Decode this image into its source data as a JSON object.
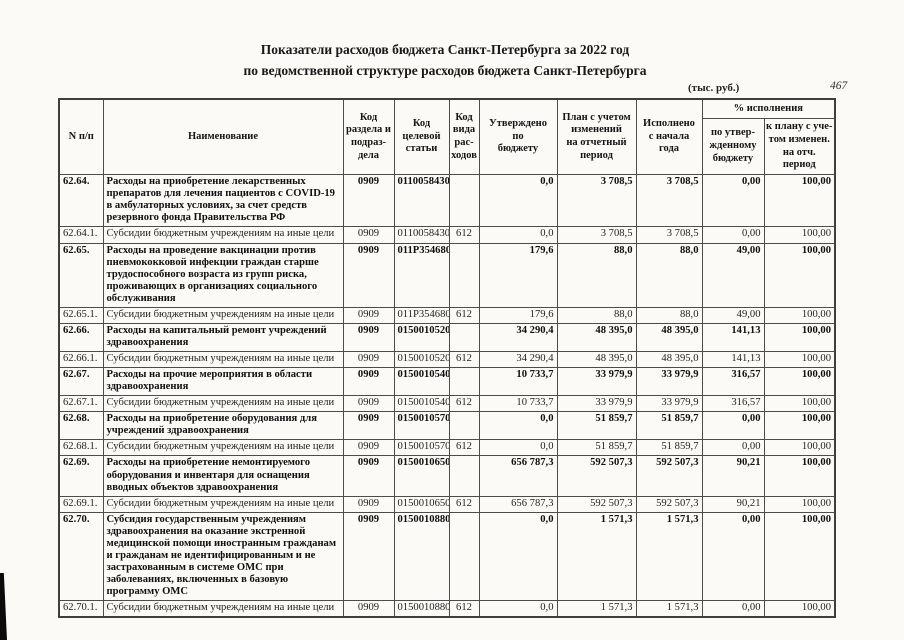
{
  "page": {
    "title_line1": "Показатели расходов бюджета Санкт-Петербурга за 2022 год",
    "title_line2": "по ведомственной структуре расходов бюджета Санкт-Петербурга",
    "units_note": "(тыс. руб.)",
    "page_number": "467"
  },
  "table": {
    "headers": {
      "num": "N п/п",
      "name": "Наименование",
      "section_code": "Код\nраздела и\nподраз-\nдела",
      "target_code": "Код\nцелевой\nстатьи",
      "kind_code": "Код\nвида\nрас-\nходов",
      "approved": "Утверждено\nпо\nбюджету",
      "plan": "План с учетом\nизменений\nна отчетный\nпериод",
      "executed": "Исполнено\nс начала\nгода",
      "pct_group": "% исполнения",
      "pct_budget": "по утвер-\nжденному\nбюджету",
      "pct_plan": "к плану с уче-\nтом изменен.\nна отч. период"
    },
    "rows": [
      {
        "num": "62.64.",
        "name": "Расходы на приобретение лекарственных препаратов для лечения пациентов с COVID-19 в амбулаторных условиях, за счет средств резервного фонда Правительства РФ",
        "section": "0909",
        "target": "0110058430",
        "kind": "",
        "approved": "0,0",
        "plan": "3 708,5",
        "executed": "3 708,5",
        "pct_budget": "0,00",
        "pct_plan": "100,00",
        "bold": true
      },
      {
        "num": "62.64.1.",
        "name": "Субсидии бюджетным учреждениям на иные цели",
        "section": "0909",
        "target": "0110058430",
        "kind": "612",
        "approved": "0,0",
        "plan": "3 708,5",
        "executed": "3 708,5",
        "pct_budget": "0,00",
        "pct_plan": "100,00",
        "bold": false
      },
      {
        "num": "62.65.",
        "name": "Расходы на проведение вакцинации против пневмококковой инфекции граждан старше трудоспособного возраста из групп риска, проживающих в организациях социального обслуживания",
        "section": "0909",
        "target": "011P354680",
        "kind": "",
        "approved": "179,6",
        "plan": "88,0",
        "executed": "88,0",
        "pct_budget": "49,00",
        "pct_plan": "100,00",
        "bold": true
      },
      {
        "num": "62.65.1.",
        "name": "Субсидии бюджетным учреждениям на иные цели",
        "section": "0909",
        "target": "011P354680",
        "kind": "612",
        "approved": "179,6",
        "plan": "88,0",
        "executed": "88,0",
        "pct_budget": "49,00",
        "pct_plan": "100,00",
        "bold": false
      },
      {
        "num": "62.66.",
        "name": "Расходы на капитальный ремонт учреждений здравоохранения",
        "section": "0909",
        "target": "0150010520",
        "kind": "",
        "approved": "34 290,4",
        "plan": "48 395,0",
        "executed": "48 395,0",
        "pct_budget": "141,13",
        "pct_plan": "100,00",
        "bold": true
      },
      {
        "num": "62.66.1.",
        "name": "Субсидии бюджетным учреждениям на иные цели",
        "section": "0909",
        "target": "0150010520",
        "kind": "612",
        "approved": "34 290,4",
        "plan": "48 395,0",
        "executed": "48 395,0",
        "pct_budget": "141,13",
        "pct_plan": "100,00",
        "bold": false
      },
      {
        "num": "62.67.",
        "name": "Расходы на прочие мероприятия в области здравоохранения",
        "section": "0909",
        "target": "0150010540",
        "kind": "",
        "approved": "10 733,7",
        "plan": "33 979,9",
        "executed": "33 979,9",
        "pct_budget": "316,57",
        "pct_plan": "100,00",
        "bold": true
      },
      {
        "num": "62.67.1.",
        "name": "Субсидии бюджетным учреждениям на иные цели",
        "section": "0909",
        "target": "0150010540",
        "kind": "612",
        "approved": "10 733,7",
        "plan": "33 979,9",
        "executed": "33 979,9",
        "pct_budget": "316,57",
        "pct_plan": "100,00",
        "bold": false
      },
      {
        "num": "62.68.",
        "name": "Расходы на приобретение оборудования для учреждений здравоохранения",
        "section": "0909",
        "target": "0150010570",
        "kind": "",
        "approved": "0,0",
        "plan": "51 859,7",
        "executed": "51 859,7",
        "pct_budget": "0,00",
        "pct_plan": "100,00",
        "bold": true
      },
      {
        "num": "62.68.1.",
        "name": "Субсидии бюджетным учреждениям на иные цели",
        "section": "0909",
        "target": "0150010570",
        "kind": "612",
        "approved": "0,0",
        "plan": "51 859,7",
        "executed": "51 859,7",
        "pct_budget": "0,00",
        "pct_plan": "100,00",
        "bold": false
      },
      {
        "num": "62.69.",
        "name": "Расходы на приобретение немонтируемого оборудования и инвентаря для оснащения вводных объектов здравоохранения",
        "section": "0909",
        "target": "0150010650",
        "kind": "",
        "approved": "656 787,3",
        "plan": "592 507,3",
        "executed": "592 507,3",
        "pct_budget": "90,21",
        "pct_plan": "100,00",
        "bold": true
      },
      {
        "num": "62.69.1.",
        "name": "Субсидии бюджетным учреждениям на иные цели",
        "section": "0909",
        "target": "0150010650",
        "kind": "612",
        "approved": "656 787,3",
        "plan": "592 507,3",
        "executed": "592 507,3",
        "pct_budget": "90,21",
        "pct_plan": "100,00",
        "bold": false
      },
      {
        "num": "62.70.",
        "name": "Субсидия государственным учреждениям здравоохранения на оказание экстренной медицинской помощи иностранным гражданам и гражданам не идентифицированным и не застрахованным в системе ОМС при заболеваниях, включенных в базовую программу ОМС",
        "section": "0909",
        "target": "0150010880",
        "kind": "",
        "approved": "0,0",
        "plan": "1 571,3",
        "executed": "1 571,3",
        "pct_budget": "0,00",
        "pct_plan": "100,00",
        "bold": true
      },
      {
        "num": "62.70.1.",
        "name": "Субсидии бюджетным учреждениям на иные цели",
        "section": "0909",
        "target": "0150010880",
        "kind": "612",
        "approved": "0,0",
        "plan": "1 571,3",
        "executed": "1 571,3",
        "pct_budget": "0,00",
        "pct_plan": "100,00",
        "bold": false
      }
    ]
  }
}
